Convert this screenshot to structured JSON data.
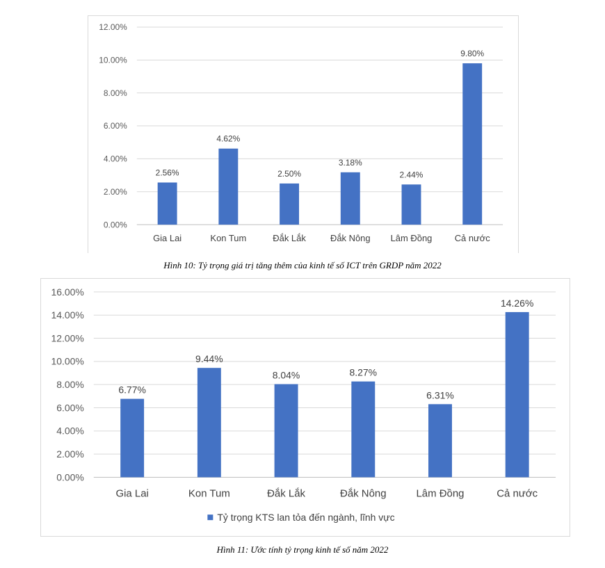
{
  "chart_data": [
    {
      "type": "bar",
      "categories": [
        "Gia Lai",
        "Kon Tum",
        "Đắk Lắk",
        "Đắk Nông",
        "Lâm Đồng",
        "Cả nước"
      ],
      "values": [
        2.56,
        4.62,
        2.5,
        3.18,
        2.44,
        9.8
      ],
      "data_labels": [
        "2.56%",
        "4.62%",
        "2.50%",
        "3.18%",
        "2.44%",
        "9.80%"
      ],
      "yticks": [
        "0.00%",
        "2.00%",
        "4.00%",
        "6.00%",
        "8.00%",
        "10.00%",
        "12.00%"
      ],
      "ylim": [
        0,
        12
      ],
      "title": "",
      "xlabel": "",
      "ylabel": "",
      "grid": true,
      "bar_color": "#4472c4",
      "caption": "Hình 10: Tỷ trọng giá trị tăng thêm của kinh tế số ICT trên GRDP năm 2022"
    },
    {
      "type": "bar",
      "categories": [
        "Gia Lai",
        "Kon Tum",
        "Đắk Lắk",
        "Đắk Nông",
        "Lâm Đồng",
        "Cả nước"
      ],
      "series": [
        {
          "name": "Tỷ trọng KTS lan tỏa đến ngành, lĩnh vực",
          "values": [
            6.77,
            9.44,
            8.04,
            8.27,
            6.31,
            14.26
          ]
        }
      ],
      "data_labels": [
        "6.77%",
        "9.44%",
        "8.04%",
        "8.27%",
        "6.31%",
        "14.26%"
      ],
      "yticks": [
        "0.00%",
        "2.00%",
        "4.00%",
        "6.00%",
        "8.00%",
        "10.00%",
        "12.00%",
        "14.00%",
        "16.00%"
      ],
      "ylim": [
        0,
        16
      ],
      "title": "",
      "xlabel": "",
      "ylabel": "",
      "grid": true,
      "legend": "bottom",
      "bar_color": "#4472c4",
      "caption": "Hình 11: Ước tính tỷ trọng kinh tế số năm 2022"
    }
  ]
}
